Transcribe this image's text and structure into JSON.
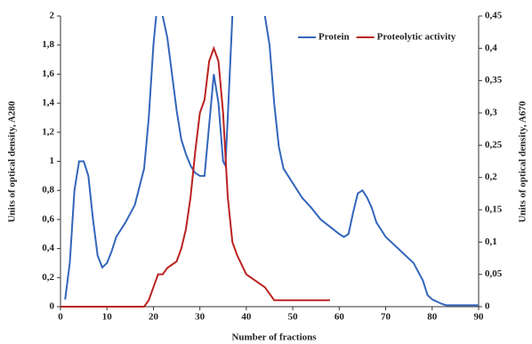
{
  "chart_data": {
    "type": "line",
    "x_label": "Number of fractions",
    "y_label": "Units of optical density, A280",
    "y2_label": "Units of optical density, A670",
    "xlim": [
      0,
      90
    ],
    "xticks": [
      0,
      10,
      20,
      30,
      40,
      50,
      60,
      70,
      80,
      90
    ],
    "ylim": [
      0,
      2
    ],
    "yticks": [
      0,
      {
        "value": 0.2,
        "label": "0,2"
      },
      {
        "value": 0.4,
        "label": "0,4"
      },
      {
        "value": 0.6,
        "label": "0,6"
      },
      {
        "value": 0.8,
        "label": "0,8"
      },
      1,
      {
        "value": 1.2,
        "label": "1,2"
      },
      {
        "value": 1.4,
        "label": "1,4"
      },
      {
        "value": 1.6,
        "label": "1,6"
      },
      {
        "value": 1.8,
        "label": "1,8"
      },
      2
    ],
    "y2lim": [
      0,
      0.45
    ],
    "y2ticks": [
      0,
      {
        "value": 0.05,
        "label": "0,05"
      },
      {
        "value": 0.1,
        "label": "0,1"
      },
      {
        "value": 0.15,
        "label": "0,15"
      },
      {
        "value": 0.2,
        "label": "0,2"
      },
      {
        "value": 0.25,
        "label": "0,25"
      },
      {
        "value": 0.3,
        "label": "0,3"
      },
      {
        "value": 0.35,
        "label": "0,35"
      },
      {
        "value": 0.4,
        "label": "0,4"
      },
      {
        "value": 0.45,
        "label": "0,45"
      }
    ],
    "legend": "top-right",
    "series": [
      {
        "name": "Protein",
        "color": "#3366bb",
        "x": [
          1,
          2,
          3,
          4,
          5,
          6,
          7,
          8,
          9,
          10,
          11,
          12,
          14,
          16,
          18,
          19,
          20,
          20.6,
          21.5,
          22,
          23,
          24,
          25,
          26,
          27,
          28,
          29,
          30,
          31,
          32,
          33,
          34,
          35,
          35.5,
          36,
          37,
          40,
          44,
          45,
          46,
          47,
          48,
          50,
          52,
          54,
          56,
          58,
          60,
          61,
          62,
          63,
          64,
          65,
          66,
          67,
          68,
          70,
          72,
          74,
          76,
          78,
          79,
          80,
          82,
          83,
          85,
          90
        ],
        "values": [
          0.05,
          0.3,
          0.8,
          1.0,
          1.0,
          0.9,
          0.6,
          0.35,
          0.27,
          0.3,
          0.38,
          0.48,
          0.58,
          0.7,
          0.95,
          1.3,
          1.8,
          2.0,
          null,
          2.0,
          1.85,
          1.6,
          1.35,
          1.15,
          1.05,
          0.97,
          0.92,
          0.9,
          0.9,
          1.25,
          1.6,
          1.4,
          1.0,
          0.97,
          1.3,
          2.0,
          null,
          2.0,
          1.8,
          1.4,
          1.1,
          0.95,
          0.85,
          0.75,
          0.68,
          0.6,
          0.55,
          0.5,
          0.48,
          0.5,
          0.65,
          0.78,
          0.8,
          0.75,
          0.68,
          0.58,
          0.48,
          0.42,
          0.36,
          0.3,
          0.18,
          0.08,
          0.05,
          0.02,
          0.01,
          0.01,
          0.01
        ]
      },
      {
        "name": "Proteolytic activity",
        "color": "#bb2222",
        "axis": "y2",
        "x": [
          0,
          18,
          19,
          20,
          21,
          22,
          23,
          25,
          26,
          27,
          28,
          29,
          30,
          31,
          32,
          33,
          34,
          35,
          36,
          37,
          38,
          40,
          42,
          44,
          45,
          46,
          58
        ],
        "values": [
          0,
          0,
          0.01,
          0.03,
          0.05,
          0.05,
          0.06,
          0.07,
          0.09,
          0.12,
          0.17,
          0.24,
          0.3,
          0.32,
          0.38,
          0.4,
          0.38,
          0.3,
          0.17,
          0.1,
          0.08,
          0.05,
          0.04,
          0.03,
          0.02,
          0.01,
          0.01
        ]
      }
    ]
  }
}
